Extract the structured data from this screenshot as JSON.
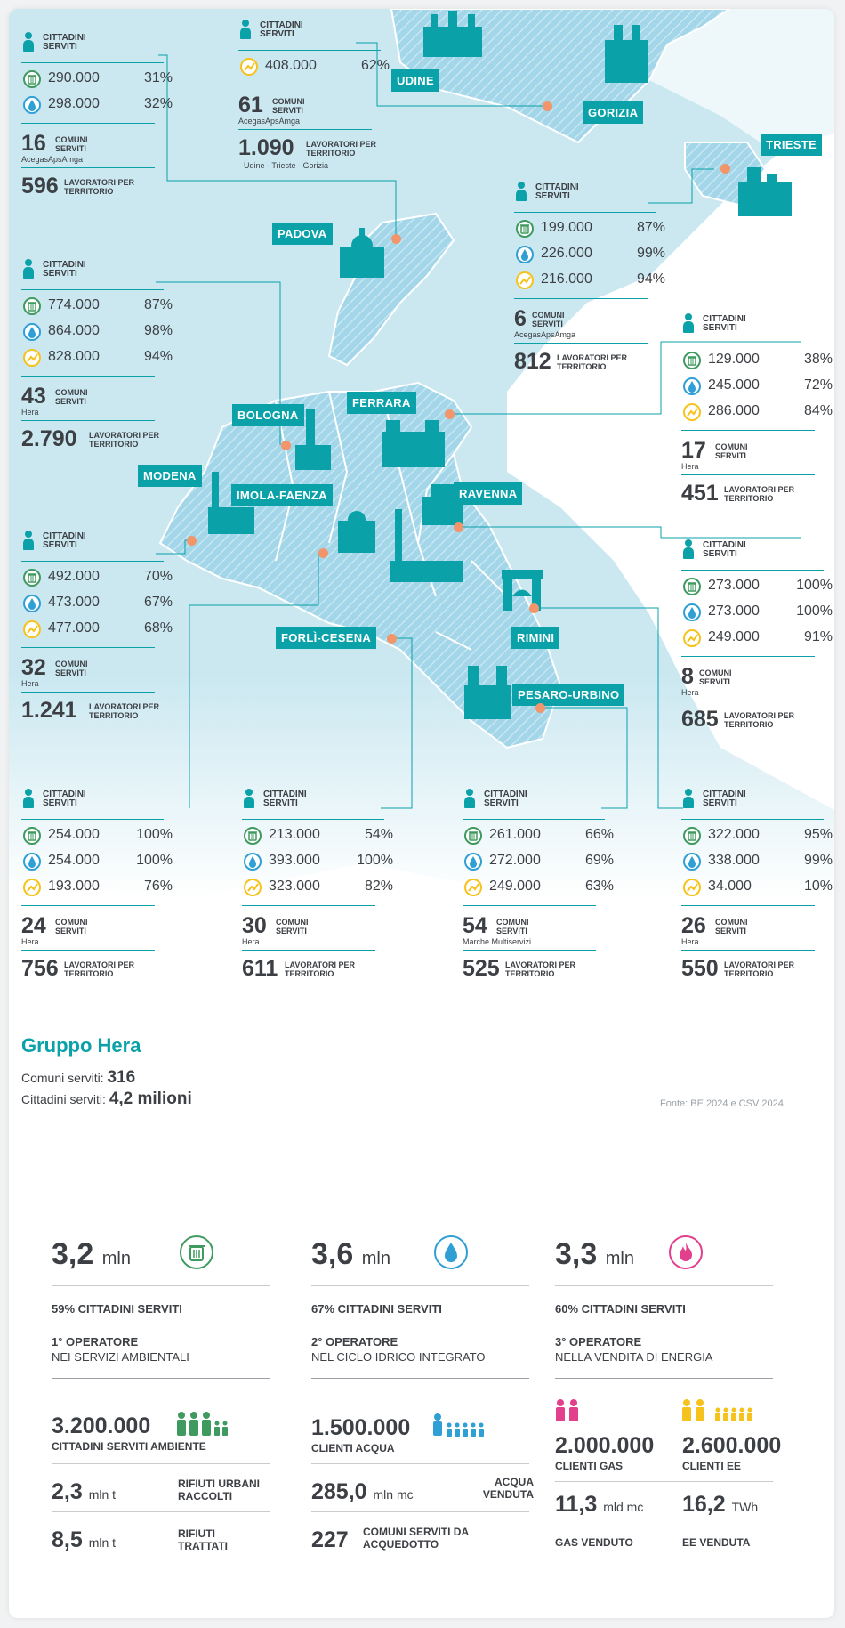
{
  "regions": [
    {
      "id": "udine-gorizia",
      "cittadini_label": "CITTADINI SERVITI",
      "rows": [
        {
          "type": "energy",
          "value": "408.000",
          "pct": "62%"
        }
      ],
      "comuni": "61",
      "comuni_label": "COMUNI SERVITI",
      "operator": "AcegasApsAmga",
      "lavoratori": "1.090",
      "lavoratori_label": "LAVORATORI PER TERRITORIO",
      "note": "Udine - Trieste - Gorizia"
    },
    {
      "id": "padova",
      "cittadini_label": "CITTADINI SERVITI",
      "rows": [
        {
          "type": "waste",
          "value": "290.000",
          "pct": "31%"
        },
        {
          "type": "water",
          "value": "298.000",
          "pct": "32%"
        }
      ],
      "comuni": "16",
      "comuni_label": "COMUNI SERVITI",
      "operator": "AcegasApsAmga",
      "lavoratori": "596",
      "lavoratori_label": "LAVORATORI PER TERRITORIO"
    },
    {
      "id": "trieste",
      "cittadini_label": "CITTADINI SERVITI",
      "rows": [
        {
          "type": "waste",
          "value": "199.000",
          "pct": "87%"
        },
        {
          "type": "water",
          "value": "226.000",
          "pct": "99%"
        },
        {
          "type": "energy",
          "value": "216.000",
          "pct": "94%"
        }
      ],
      "comuni": "6",
      "comuni_label": "COMUNI SERVITI",
      "operator": "AcegasApsAmga",
      "lavoratori": "812",
      "lavoratori_label": "LAVORATORI PER TERRITORIO"
    },
    {
      "id": "bologna",
      "cittadini_label": "CITTADINI SERVITI",
      "rows": [
        {
          "type": "waste",
          "value": "774.000",
          "pct": "87%"
        },
        {
          "type": "water",
          "value": "864.000",
          "pct": "98%"
        },
        {
          "type": "energy",
          "value": "828.000",
          "pct": "94%"
        }
      ],
      "comuni": "43",
      "comuni_label": "COMUNI SERVITI",
      "operator": "Hera",
      "lavoratori": "2.790",
      "lavoratori_label": "LAVORATORI PER TERRITORIO"
    },
    {
      "id": "ferrara",
      "cittadini_label": "CITTADINI SERVITI",
      "rows": [
        {
          "type": "waste",
          "value": "129.000",
          "pct": "38%"
        },
        {
          "type": "water",
          "value": "245.000",
          "pct": "72%"
        },
        {
          "type": "energy",
          "value": "286.000",
          "pct": "84%"
        }
      ],
      "comuni": "17",
      "comuni_label": "COMUNI SERVITI",
      "operator": "Hera",
      "lavoratori": "451",
      "lavoratori_label": "LAVORATORI PER TERRITORIO"
    },
    {
      "id": "modena",
      "cittadini_label": "CITTADINI SERVITI",
      "rows": [
        {
          "type": "waste",
          "value": "492.000",
          "pct": "70%"
        },
        {
          "type": "water",
          "value": "473.000",
          "pct": "67%"
        },
        {
          "type": "energy",
          "value": "477.000",
          "pct": "68%"
        }
      ],
      "comuni": "32",
      "comuni_label": "COMUNI SERVITI",
      "operator": "Hera",
      "lavoratori": "1.241",
      "lavoratori_label": "LAVORATORI PER TERRITORIO"
    },
    {
      "id": "ravenna",
      "cittadini_label": "CITTADINI SERVITI",
      "rows": [
        {
          "type": "waste",
          "value": "273.000",
          "pct": "100%"
        },
        {
          "type": "water",
          "value": "273.000",
          "pct": "100%"
        },
        {
          "type": "energy",
          "value": "249.000",
          "pct": "91%"
        }
      ],
      "comuni": "8",
      "comuni_label": "COMUNI SERVITI",
      "operator": "Hera",
      "lavoratori": "685",
      "lavoratori_label": "LAVORATORI PER TERRITORIO"
    },
    {
      "id": "imola-faenza",
      "cittadini_label": "CITTADINI SERVITI",
      "rows": [
        {
          "type": "waste",
          "value": "254.000",
          "pct": "100%"
        },
        {
          "type": "water",
          "value": "254.000",
          "pct": "100%"
        },
        {
          "type": "energy",
          "value": "193.000",
          "pct": "76%"
        }
      ],
      "comuni": "24",
      "comuni_label": "COMUNI SERVITI",
      "operator": "Hera",
      "lavoratori": "756",
      "lavoratori_label": "LAVORATORI PER TERRITORIO"
    },
    {
      "id": "forli-cesena",
      "cittadini_label": "CITTADINI SERVITI",
      "rows": [
        {
          "type": "waste",
          "value": "213.000",
          "pct": "54%"
        },
        {
          "type": "water",
          "value": "393.000",
          "pct": "100%"
        },
        {
          "type": "energy",
          "value": "323.000",
          "pct": "82%"
        }
      ],
      "comuni": "30",
      "comuni_label": "COMUNI SERVITI",
      "operator": "Hera",
      "lavoratori": "611",
      "lavoratori_label": "LAVORATORI PER TERRITORIO"
    },
    {
      "id": "pesaro-urbino",
      "cittadini_label": "CITTADINI SERVITI",
      "rows": [
        {
          "type": "waste",
          "value": "261.000",
          "pct": "66%"
        },
        {
          "type": "water",
          "value": "272.000",
          "pct": "69%"
        },
        {
          "type": "energy",
          "value": "249.000",
          "pct": "63%"
        }
      ],
      "comuni": "54",
      "comuni_label": "COMUNI SERVITI",
      "operator": "Marche Multiservizi",
      "lavoratori": "525",
      "lavoratori_label": "LAVORATORI PER TERRITORIO"
    },
    {
      "id": "rimini",
      "cittadini_label": "CITTADINI SERVITI",
      "rows": [
        {
          "type": "waste",
          "value": "322.000",
          "pct": "95%"
        },
        {
          "type": "water",
          "value": "338.000",
          "pct": "99%"
        },
        {
          "type": "energy",
          "value": "34.000",
          "pct": "10%"
        }
      ],
      "comuni": "26",
      "comuni_label": "COMUNI SERVITI",
      "operator": "Hera",
      "lavoratori": "550",
      "lavoratori_label": "LAVORATORI PER TERRITORIO"
    }
  ],
  "cities": {
    "udine": "UDINE",
    "gorizia": "GORIZIA",
    "trieste": "TRIESTE",
    "padova": "PADOVA",
    "bologna": "BOLOGNA",
    "ferrara": "FERRARA",
    "modena": "MODENA",
    "imola": "IMOLA-FAENZA",
    "ravenna": "RAVENNA",
    "forli": "FORLÌ-CESENA",
    "rimini": "RIMINI",
    "pesaro": "PESARO-URBINO"
  },
  "gruppo": {
    "title": "Gruppo Hera",
    "comuni_label": "Comuni serviti:",
    "comuni_value": "316",
    "cittadini_label": "Cittadini serviti:",
    "cittadini_value": "4,2 milioni",
    "fonte": "Fonte: BE 2024 e CSV 2024"
  },
  "kpis": {
    "ambiente": {
      "big": "3,2",
      "unit": "mln",
      "pct_label": "59% CITTADINI SERVITI",
      "rank": "1° OPERATORE",
      "rank_desc": "NEI SERVIZI AMBIENTALI",
      "count": "3.200.000",
      "count_label": "CITTADINI SERVITI AMBIENTE",
      "m1_val": "2,3",
      "m1_unit": "mln t",
      "m1_label": "RIFIUTI URBANI RACCOLTI",
      "m2_val": "8,5",
      "m2_unit": "mln t",
      "m2_label": "RIFIUTI TRATTATI",
      "icon": "waste-bin-icon",
      "color": "#3e9a5f"
    },
    "acqua": {
      "big": "3,6",
      "unit": "mln",
      "pct_label": "67% CITTADINI SERVITI",
      "rank": "2° OPERATORE",
      "rank_desc": "NEL CICLO IDRICO INTEGRATO",
      "count": "1.500.000",
      "count_label": "CLIENTI ACQUA",
      "m1_val": "285,0",
      "m1_unit": "mln mc",
      "m1_label": "ACQUA VENDUTA",
      "m2_val": "227",
      "m2_unit": "",
      "m2_label": "COMUNI SERVITI DA ACQUEDOTTO",
      "icon": "water-drop-icon",
      "color": "#2f9fd6"
    },
    "energia": {
      "big": "3,3",
      "unit": "mln",
      "pct_label": "60% CITTADINI SERVITI",
      "rank": "3° OPERATORE",
      "rank_desc": "NELLA VENDITA DI ENERGIA",
      "gas_count": "2.000.000",
      "gas_label": "CLIENTI GAS",
      "ee_count": "2.600.000",
      "ee_label": "CLIENTI EE",
      "gas_val": "11,3",
      "gas_unit": "mld mc",
      "gas_sold": "GAS VENDUTO",
      "ee_val": "16,2",
      "ee_unit": "TWh",
      "ee_sold": "EE VENDUTA",
      "icon": "flame-icon",
      "color": "#e23f8d",
      "color_ee": "#f6c21c"
    }
  }
}
